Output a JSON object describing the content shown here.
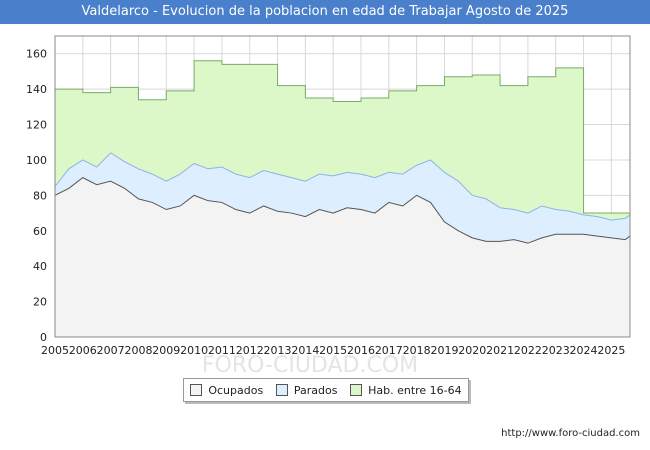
{
  "chart_data": {
    "type": "area",
    "title": "Valdelarco - Evolucion de la poblacion en edad de Trabajar Agosto de 2025",
    "xlabel": "",
    "ylabel": "",
    "ylim": [
      0,
      170
    ],
    "yticks": [
      "0",
      "20",
      "40",
      "60",
      "80",
      "100",
      "120",
      "140",
      "160"
    ],
    "xticks": [
      "2005",
      "2006",
      "2007",
      "2008",
      "2009",
      "2010",
      "2011",
      "2012",
      "2013",
      "2014",
      "2015",
      "2016",
      "2017",
      "2018",
      "2019",
      "2020",
      "2021",
      "2022",
      "2023",
      "2024",
      "2025"
    ],
    "xlim": [
      2005,
      2025.67
    ],
    "grid": true,
    "legend_position": "bottom-center",
    "colors": {
      "ocupados_fill": "#f3f3f3",
      "ocupados_line": "#555555",
      "parados_fill": "#ddeeff",
      "parados_line": "#8ab4e8",
      "hab_fill": "#ddf8c8",
      "hab_line": "#7aab6a",
      "title_bg": "#4a7fcc"
    },
    "series": [
      {
        "name": "Hab. entre 16-64",
        "x": [
          2005,
          2006,
          2007,
          2008,
          2009,
          2010,
          2011,
          2012,
          2013,
          2014,
          2015,
          2016,
          2017,
          2018,
          2019,
          2020,
          2021,
          2022,
          2023,
          2024
        ],
        "values": [
          140,
          138,
          141,
          134,
          139,
          156,
          154,
          154,
          142,
          135,
          133,
          135,
          139,
          142,
          147,
          148,
          142,
          147,
          152,
          70
        ]
      },
      {
        "name": "Parados",
        "x": [
          2005,
          2005.5,
          2006,
          2006.5,
          2007,
          2007.5,
          2008,
          2008.5,
          2009,
          2009.5,
          2010,
          2010.5,
          2011,
          2011.5,
          2012,
          2012.5,
          2013,
          2013.5,
          2014,
          2014.5,
          2015,
          2015.5,
          2016,
          2016.5,
          2017,
          2017.5,
          2018,
          2018.5,
          2019,
          2019.5,
          2020,
          2020.5,
          2021,
          2021.5,
          2022,
          2022.5,
          2023,
          2023.5,
          2024,
          2024.5,
          2025,
          2025.5,
          2025.67
        ],
        "values": [
          85,
          95,
          100,
          96,
          104,
          99,
          95,
          92,
          88,
          92,
          98,
          95,
          96,
          92,
          90,
          94,
          92,
          90,
          88,
          92,
          91,
          93,
          92,
          90,
          93,
          92,
          97,
          100,
          93,
          88,
          80,
          78,
          73,
          72,
          70,
          74,
          72,
          71,
          69,
          68,
          66,
          67,
          69
        ]
      },
      {
        "name": "Ocupados",
        "x": [
          2005,
          2005.5,
          2006,
          2006.5,
          2007,
          2007.5,
          2008,
          2008.5,
          2009,
          2009.5,
          2010,
          2010.5,
          2011,
          2011.5,
          2012,
          2012.5,
          2013,
          2013.5,
          2014,
          2014.5,
          2015,
          2015.5,
          2016,
          2016.5,
          2017,
          2017.5,
          2018,
          2018.5,
          2019,
          2019.5,
          2020,
          2020.5,
          2021,
          2021.5,
          2022,
          2022.5,
          2023,
          2023.5,
          2024,
          2024.5,
          2025,
          2025.5,
          2025.67
        ],
        "values": [
          80,
          84,
          90,
          86,
          88,
          84,
          78,
          76,
          72,
          74,
          80,
          77,
          76,
          72,
          70,
          74,
          71,
          70,
          68,
          72,
          70,
          73,
          72,
          70,
          76,
          74,
          80,
          76,
          65,
          60,
          56,
          54,
          54,
          55,
          53,
          56,
          58,
          58,
          58,
          57,
          56,
          55,
          57
        ]
      }
    ]
  },
  "legend": {
    "items": [
      {
        "label": "Ocupados"
      },
      {
        "label": "Parados"
      },
      {
        "label": "Hab. entre 16-64"
      }
    ]
  },
  "footer": {
    "source": "http://www.foro-ciudad.com"
  },
  "watermark": "FORO-CIUDAD.COM"
}
